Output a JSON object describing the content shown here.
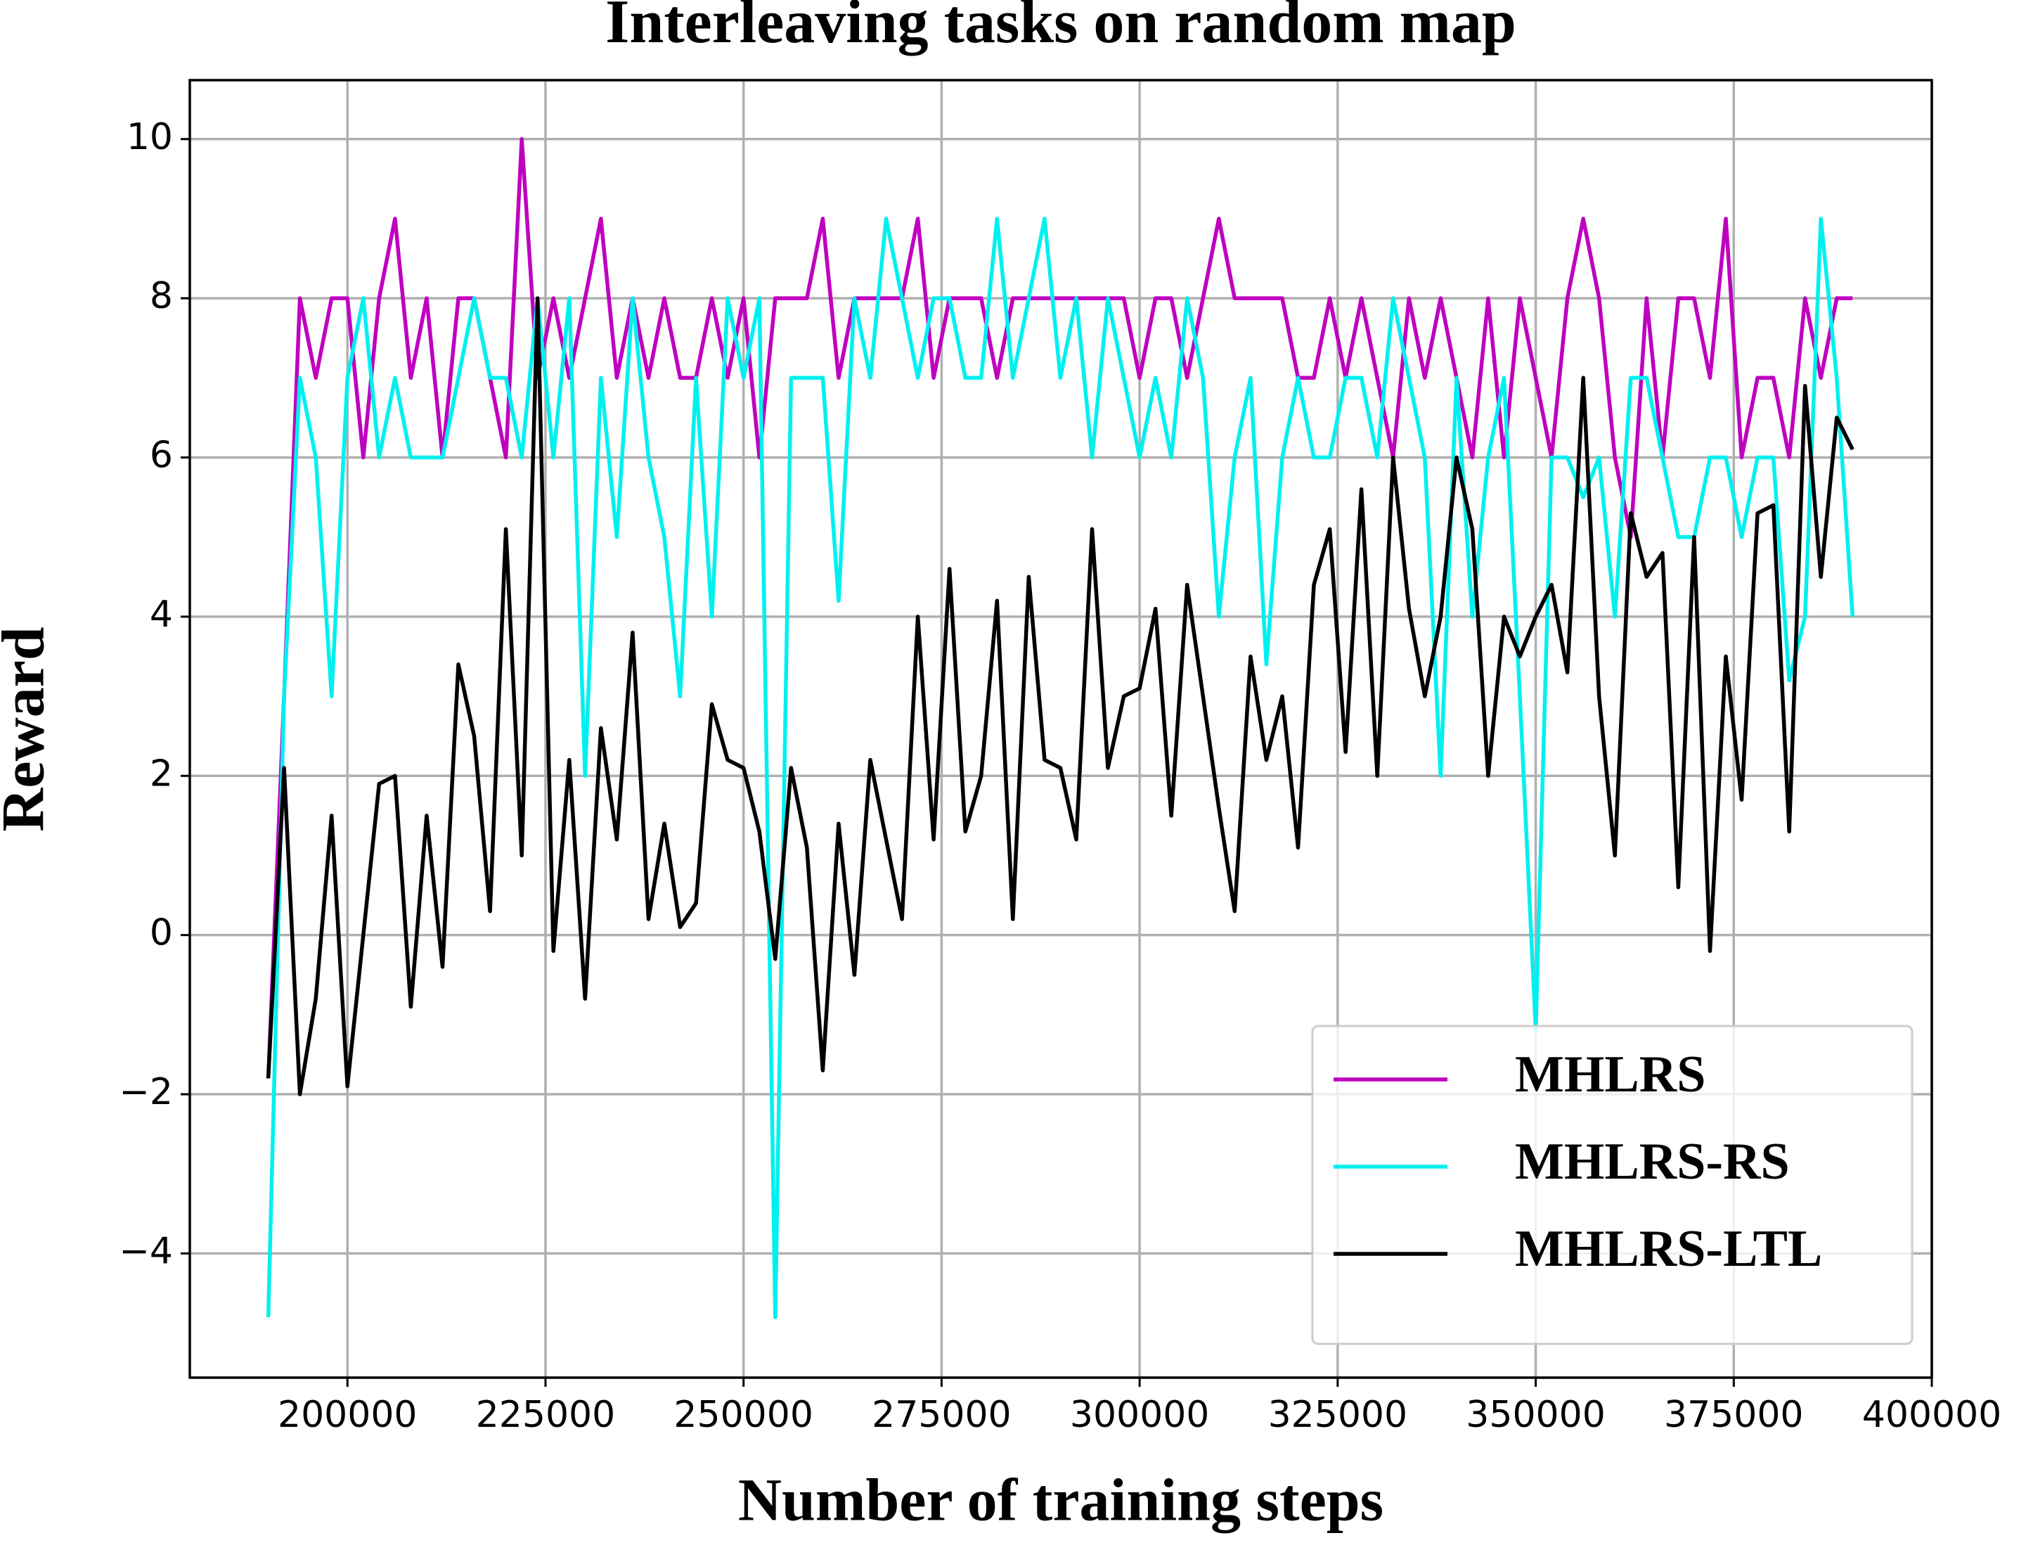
{
  "chart_data": {
    "type": "line",
    "title": "Interleaving tasks on random map",
    "xlabel": "Number of training steps",
    "ylabel": "Reward",
    "x": [
      190000,
      192000,
      194000,
      196000,
      198000,
      200000,
      202000,
      204000,
      206000,
      208000,
      210000,
      212000,
      214000,
      216000,
      218000,
      220000,
      222000,
      224000,
      226000,
      228000,
      230000,
      232000,
      234000,
      236000,
      238000,
      240000,
      242000,
      244000,
      246000,
      248000,
      250000,
      252000,
      254000,
      256000,
      258000,
      260000,
      262000,
      264000,
      266000,
      268000,
      270000,
      272000,
      274000,
      276000,
      278000,
      280000,
      282000,
      284000,
      286000,
      288000,
      290000,
      292000,
      294000,
      296000,
      298000,
      300000,
      302000,
      304000,
      306000,
      308000,
      310000,
      312000,
      314000,
      316000,
      318000,
      320000,
      322000,
      324000,
      326000,
      328000,
      330000,
      332000,
      334000,
      336000,
      338000,
      340000,
      342000,
      344000,
      346000,
      348000,
      350000,
      352000,
      354000,
      356000,
      358000,
      360000,
      362000,
      364000,
      366000,
      368000,
      370000,
      372000,
      374000,
      376000,
      378000,
      380000,
      382000,
      384000,
      386000,
      388000,
      390000
    ],
    "series": [
      {
        "name": "MHLRS",
        "color": "#bf00bf",
        "values": [
          -1.8,
          3,
          8,
          7,
          8,
          8,
          6,
          8,
          9,
          7,
          8,
          6,
          8,
          8,
          7,
          6,
          10,
          7,
          8,
          7,
          8,
          9,
          7,
          8,
          7,
          8,
          7,
          7,
          8,
          7,
          8,
          6,
          8,
          8,
          8,
          9,
          7,
          8,
          8,
          8,
          8,
          9,
          7,
          8,
          8,
          8,
          7,
          8,
          8,
          8,
          8,
          8,
          8,
          8,
          8,
          7,
          8,
          8,
          7,
          8,
          9,
          8,
          8,
          8,
          8,
          7,
          7,
          8,
          7,
          8,
          7,
          6,
          8,
          7,
          8,
          7,
          6,
          8,
          6,
          8,
          7,
          6,
          8,
          9,
          8,
          6,
          5,
          8,
          6,
          8,
          8,
          7,
          9,
          6,
          7,
          7,
          6,
          8,
          7,
          8,
          8
        ]
      },
      {
        "name": "MHLRS-RS",
        "color": "#00f0f0",
        "values": [
          -4.8,
          3,
          7,
          6,
          3,
          7,
          8,
          6,
          7,
          6,
          6,
          6,
          7,
          8,
          7,
          7,
          6,
          8,
          6,
          8,
          2,
          7,
          5,
          8,
          6,
          5,
          3,
          7,
          4,
          8,
          7,
          8,
          -4.8,
          7,
          7,
          7,
          4.2,
          8,
          7,
          9,
          8,
          7,
          8,
          8,
          7,
          7,
          9,
          7,
          8,
          9,
          7,
          8,
          6,
          8,
          7,
          6,
          7,
          6,
          8,
          7,
          4,
          6,
          7,
          3.4,
          6,
          7,
          6,
          6,
          7,
          7,
          6,
          8,
          7,
          6,
          2,
          7,
          4,
          6,
          7,
          3,
          -1.2,
          6,
          6,
          5.5,
          6,
          4,
          7,
          7,
          6,
          5,
          5,
          6,
          6,
          5,
          6,
          6,
          3.2,
          4,
          9,
          7,
          4
        ]
      },
      {
        "name": "MHLRS-LTL",
        "color": "#000000",
        "values": [
          -1.8,
          2.1,
          -2,
          -0.8,
          1.5,
          -1.9,
          0,
          1.9,
          2,
          -0.9,
          1.5,
          -0.4,
          3.4,
          2.5,
          0.3,
          5.1,
          1,
          8,
          -0.2,
          2.2,
          -0.8,
          2.6,
          1.2,
          3.8,
          0.2,
          1.4,
          0.1,
          0.4,
          2.9,
          2.2,
          2.1,
          1.3,
          -0.3,
          2.1,
          1.1,
          -1.7,
          1.4,
          -0.5,
          2.2,
          1.2,
          0.2,
          4,
          1.2,
          4.6,
          1.3,
          2,
          4.2,
          0.2,
          4.5,
          2.2,
          2.1,
          1.2,
          5.1,
          2.1,
          3,
          3.1,
          4.1,
          1.5,
          4.4,
          3,
          1.6,
          0.3,
          3.5,
          2.2,
          3,
          1.1,
          4.4,
          5.1,
          2.3,
          5.6,
          2,
          6,
          4.1,
          3,
          4,
          6,
          5.1,
          2,
          4,
          3.5,
          4,
          4.4,
          3.3,
          7,
          3,
          1,
          5.3,
          4.5,
          4.8,
          0.6,
          5,
          -0.2,
          3.5,
          1.7,
          5.3,
          5.4,
          1.3,
          6.9,
          4.5,
          6.5,
          6.1
        ]
      }
    ],
    "xlim": [
      180100,
      400000
    ],
    "xticks": [
      200000,
      225000,
      250000,
      275000,
      300000,
      325000,
      350000,
      375000,
      400000
    ],
    "ylim": [
      -5.56,
      10.74
    ],
    "yticks": [
      {
        "value": -4,
        "label": "−4"
      },
      {
        "value": -2,
        "label": "−2"
      },
      0,
      2,
      4,
      6,
      8,
      10
    ],
    "grid": true,
    "legend": "lower right"
  }
}
